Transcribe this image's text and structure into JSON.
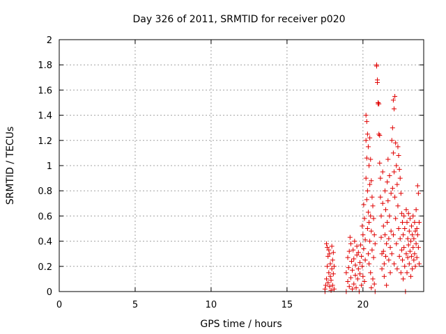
{
  "chart_data": {
    "type": "scatter",
    "title": "Day 326 of 2011, SRMTID for receiver p020",
    "xlabel": "GPS time / hours",
    "ylabel": "SRMTID / TECUs",
    "xlim": [
      0,
      24
    ],
    "ylim": [
      0,
      2
    ],
    "xticks": [
      0,
      5,
      10,
      15,
      20
    ],
    "yticks": [
      0,
      0.2,
      0.4,
      0.6,
      0.8,
      1,
      1.2,
      1.4,
      1.6,
      1.8,
      2
    ],
    "xtick_labels": [
      "0",
      "5",
      "10",
      "15",
      "20"
    ],
    "ytick_labels": [
      "0",
      "0.2",
      "0.4",
      "0.6",
      "0.8",
      "1",
      "1.2",
      "1.4",
      "1.6",
      "1.8",
      "2"
    ],
    "grid": true,
    "marker": "+",
    "color": "#e00000",
    "series": [
      {
        "name": "p020",
        "points": [
          [
            17.5,
            0.02
          ],
          [
            17.5,
            0.0
          ],
          [
            17.55,
            0.05
          ],
          [
            17.6,
            0.1
          ],
          [
            17.6,
            0.38
          ],
          [
            17.65,
            0.35
          ],
          [
            17.65,
            0.2
          ],
          [
            17.7,
            0.28
          ],
          [
            17.7,
            0.07
          ],
          [
            17.75,
            0.15
          ],
          [
            17.75,
            0.33
          ],
          [
            17.8,
            0.3
          ],
          [
            17.8,
            0.04
          ],
          [
            17.85,
            0.12
          ],
          [
            17.85,
            0.22
          ],
          [
            17.9,
            0.09
          ],
          [
            17.9,
            0.01
          ],
          [
            17.95,
            0.18
          ],
          [
            17.95,
            0.36
          ],
          [
            18.0,
            0.25
          ],
          [
            18.0,
            0.05
          ],
          [
            18.05,
            0.14
          ],
          [
            18.05,
            0.31
          ],
          [
            18.1,
            0.02
          ],
          [
            18.1,
            0.2
          ],
          [
            18.9,
            0.0
          ],
          [
            18.9,
            0.15
          ],
          [
            19.0,
            0.27
          ],
          [
            19.0,
            0.08
          ],
          [
            19.05,
            0.19
          ],
          [
            19.1,
            0.32
          ],
          [
            19.1,
            0.04
          ],
          [
            19.15,
            0.43
          ],
          [
            19.2,
            0.38
          ],
          [
            19.2,
            0.11
          ],
          [
            19.25,
            0.24
          ],
          [
            19.3,
            0.02
          ],
          [
            19.3,
            0.17
          ],
          [
            19.35,
            0.33
          ],
          [
            19.4,
            0.06
          ],
          [
            19.4,
            0.26
          ],
          [
            19.45,
            0.4
          ],
          [
            19.5,
            0.13
          ],
          [
            19.5,
            0.21
          ],
          [
            19.55,
            0.03
          ],
          [
            19.6,
            0.29
          ],
          [
            19.6,
            0.36
          ],
          [
            19.65,
            0.1
          ],
          [
            19.7,
            0.18
          ],
          [
            19.7,
            0.31
          ],
          [
            19.75,
            0.0
          ],
          [
            19.8,
            0.23
          ],
          [
            19.8,
            0.14
          ],
          [
            19.85,
            0.37
          ],
          [
            19.9,
            0.05
          ],
          [
            19.9,
            0.28
          ],
          [
            19.95,
            0.52
          ],
          [
            19.95,
            0.2
          ],
          [
            20.0,
            0.45
          ],
          [
            20.0,
            0.12
          ],
          [
            20.05,
            0.69
          ],
          [
            20.05,
            0.34
          ],
          [
            20.1,
            0.58
          ],
          [
            20.1,
            0.08
          ],
          [
            20.15,
            0.25
          ],
          [
            20.15,
            0.41
          ],
          [
            20.2,
            1.4
          ],
          [
            20.2,
            1.2
          ],
          [
            20.2,
            0.9
          ],
          [
            20.25,
            1.35
          ],
          [
            20.25,
            1.06
          ],
          [
            20.25,
            0.73
          ],
          [
            20.3,
            1.25
          ],
          [
            20.3,
            0.8
          ],
          [
            20.3,
            0.5
          ],
          [
            20.35,
            1.15
          ],
          [
            20.35,
            0.63
          ],
          [
            20.35,
            0.3
          ],
          [
            20.4,
            1.0
          ],
          [
            20.4,
            0.55
          ],
          [
            20.4,
            0.22
          ],
          [
            20.45,
            1.22
          ],
          [
            20.45,
            0.85
          ],
          [
            20.45,
            0.4
          ],
          [
            20.5,
            1.05
          ],
          [
            20.5,
            0.6
          ],
          [
            20.5,
            0.15
          ],
          [
            20.55,
            0.88
          ],
          [
            20.55,
            0.48
          ],
          [
            20.55,
            0.03
          ],
          [
            20.6,
            0.75
          ],
          [
            20.6,
            0.33
          ],
          [
            20.65,
            0.68
          ],
          [
            20.65,
            0.1
          ],
          [
            20.7,
            0.58
          ],
          [
            20.7,
            0.27
          ],
          [
            20.75,
            0.45
          ],
          [
            20.75,
            0.06
          ],
          [
            20.8,
            0.38
          ],
          [
            20.8,
            0.0
          ],
          [
            20.9,
            1.8
          ],
          [
            20.9,
            1.79
          ],
          [
            20.95,
            1.68
          ],
          [
            20.95,
            1.66
          ],
          [
            21.0,
            1.5
          ],
          [
            21.0,
            1.49
          ],
          [
            21.05,
            1.49
          ],
          [
            21.05,
            1.25
          ],
          [
            21.1,
            1.24
          ],
          [
            21.1,
            1.02
          ],
          [
            21.15,
            0.9
          ],
          [
            21.15,
            0.75
          ],
          [
            21.2,
            0.6
          ],
          [
            21.2,
            0.43
          ],
          [
            21.25,
            0.3
          ],
          [
            21.25,
            0.18
          ],
          [
            21.3,
            0.95
          ],
          [
            21.3,
            0.7
          ],
          [
            21.35,
            0.52
          ],
          [
            21.35,
            0.32
          ],
          [
            21.4,
            0.22
          ],
          [
            21.4,
            0.12
          ],
          [
            21.45,
            0.8
          ],
          [
            21.45,
            0.45
          ],
          [
            21.5,
            0.65
          ],
          [
            21.5,
            0.28
          ],
          [
            21.55,
            0.38
          ],
          [
            21.55,
            0.05
          ],
          [
            21.6,
            0.87
          ],
          [
            21.6,
            0.55
          ],
          [
            21.65,
            1.05
          ],
          [
            21.65,
            0.72
          ],
          [
            21.7,
            0.42
          ],
          [
            21.7,
            0.25
          ],
          [
            21.75,
            0.92
          ],
          [
            21.75,
            0.6
          ],
          [
            21.8,
            0.35
          ],
          [
            21.8,
            0.15
          ],
          [
            21.85,
            0.78
          ],
          [
            21.85,
            0.48
          ],
          [
            21.9,
            1.2
          ],
          [
            21.9,
            0.3
          ],
          [
            21.95,
            1.3
          ],
          [
            21.95,
            0.82
          ],
          [
            22.0,
            1.52
          ],
          [
            22.0,
            1.1
          ],
          [
            22.0,
            0.45
          ],
          [
            22.05,
            1.45
          ],
          [
            22.05,
            0.95
          ],
          [
            22.05,
            0.22
          ],
          [
            22.1,
            1.55
          ],
          [
            22.1,
            0.75
          ],
          [
            22.15,
            1.18
          ],
          [
            22.15,
            0.58
          ],
          [
            22.2,
            1.0
          ],
          [
            22.2,
            0.38
          ],
          [
            22.25,
            0.85
          ],
          [
            22.25,
            0.18
          ],
          [
            22.3,
            1.15
          ],
          [
            22.3,
            0.68
          ],
          [
            22.35,
            1.08
          ],
          [
            22.35,
            0.5
          ],
          [
            22.4,
            0.97
          ],
          [
            22.4,
            0.28
          ],
          [
            22.45,
            0.9
          ],
          [
            22.45,
            0.42
          ],
          [
            22.5,
            0.78
          ],
          [
            22.5,
            0.15
          ],
          [
            22.55,
            0.62
          ],
          [
            22.55,
            0.33
          ],
          [
            22.6,
            0.55
          ],
          [
            22.6,
            0.25
          ],
          [
            22.65,
            0.45
          ],
          [
            22.65,
            0.1
          ],
          [
            22.7,
            0.6
          ],
          [
            22.7,
            0.35
          ],
          [
            22.75,
            0.5
          ],
          [
            22.75,
            0.2
          ],
          [
            22.8,
            0.0
          ],
          [
            22.85,
            0.65
          ],
          [
            22.85,
            0.3
          ],
          [
            22.9,
            0.55
          ],
          [
            22.9,
            0.15
          ],
          [
            22.95,
            0.42
          ],
          [
            22.95,
            0.27
          ],
          [
            23.0,
            0.62
          ],
          [
            23.0,
            0.37
          ],
          [
            23.05,
            0.48
          ],
          [
            23.05,
            0.22
          ],
          [
            23.1,
            0.58
          ],
          [
            23.1,
            0.32
          ],
          [
            23.15,
            0.4
          ],
          [
            23.15,
            0.12
          ],
          [
            23.2,
            0.52
          ],
          [
            23.2,
            0.28
          ],
          [
            23.25,
            0.45
          ],
          [
            23.25,
            0.18
          ],
          [
            23.3,
            0.6
          ],
          [
            23.3,
            0.35
          ],
          [
            23.35,
            0.42
          ],
          [
            23.35,
            0.25
          ],
          [
            23.4,
            0.55
          ],
          [
            23.4,
            0.3
          ],
          [
            23.45,
            0.48
          ],
          [
            23.45,
            0.2
          ],
          [
            23.5,
            0.65
          ],
          [
            23.5,
            0.38
          ],
          [
            23.55,
            0.5
          ],
          [
            23.55,
            0.27
          ],
          [
            23.6,
            0.84
          ],
          [
            23.6,
            0.45
          ],
          [
            23.65,
            0.78
          ],
          [
            23.65,
            0.35
          ],
          [
            23.7,
            0.55
          ],
          [
            23.7,
            0.22
          ]
        ]
      }
    ]
  }
}
